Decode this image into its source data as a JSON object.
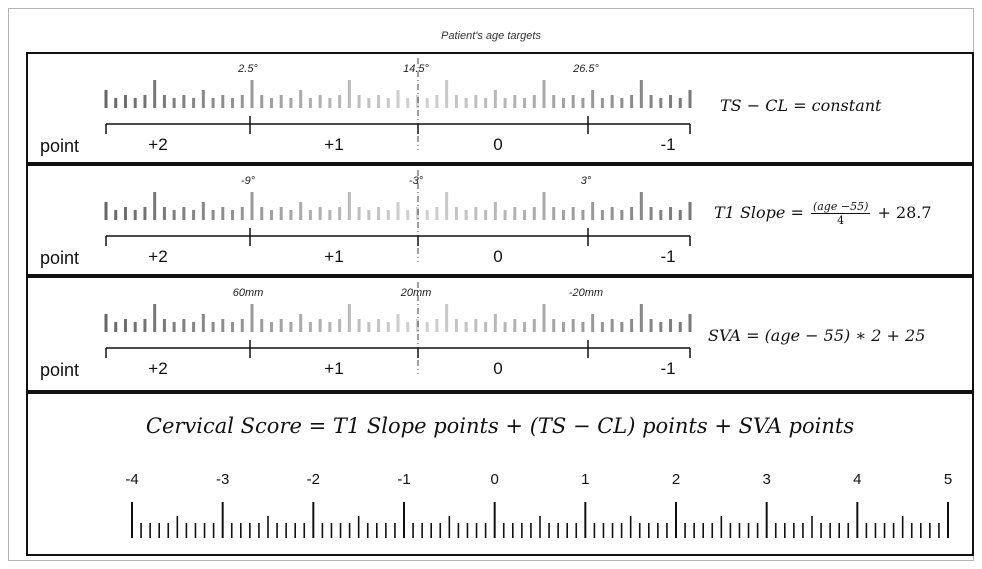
{
  "header": {
    "title": "Patient's age targets"
  },
  "point_label": "point",
  "point_ticks": [
    "+2",
    "+1",
    "0",
    "-1"
  ],
  "rows": [
    {
      "id": "ts-cl",
      "targets": [
        "2.5°",
        "14.5°",
        "26.5°"
      ],
      "equation": "TS − CL = constant"
    },
    {
      "id": "t1-slope",
      "targets": [
        "-9°",
        "-3°",
        "3°"
      ],
      "equation_lhs": "T1 Slope =",
      "frac_num": "(age −55)",
      "frac_den": "4",
      "equation_rhs": "+ 28.7"
    },
    {
      "id": "sva",
      "targets": [
        "60mm",
        "20mm",
        "-20mm"
      ],
      "equation": "SVA = (age − 55) ∗ 2 + 25"
    }
  ],
  "score": {
    "equation": "Cervical Score = T1 Slope points + (TS − CL) points + SVA points",
    "ticks": [
      "-4",
      "-3",
      "-2",
      "-1",
      "0",
      "1",
      "2",
      "3",
      "4",
      "5"
    ]
  },
  "colors": {
    "stroke": "#111111",
    "ruler_dark": "#666666",
    "ruler_light": "#dedede"
  }
}
